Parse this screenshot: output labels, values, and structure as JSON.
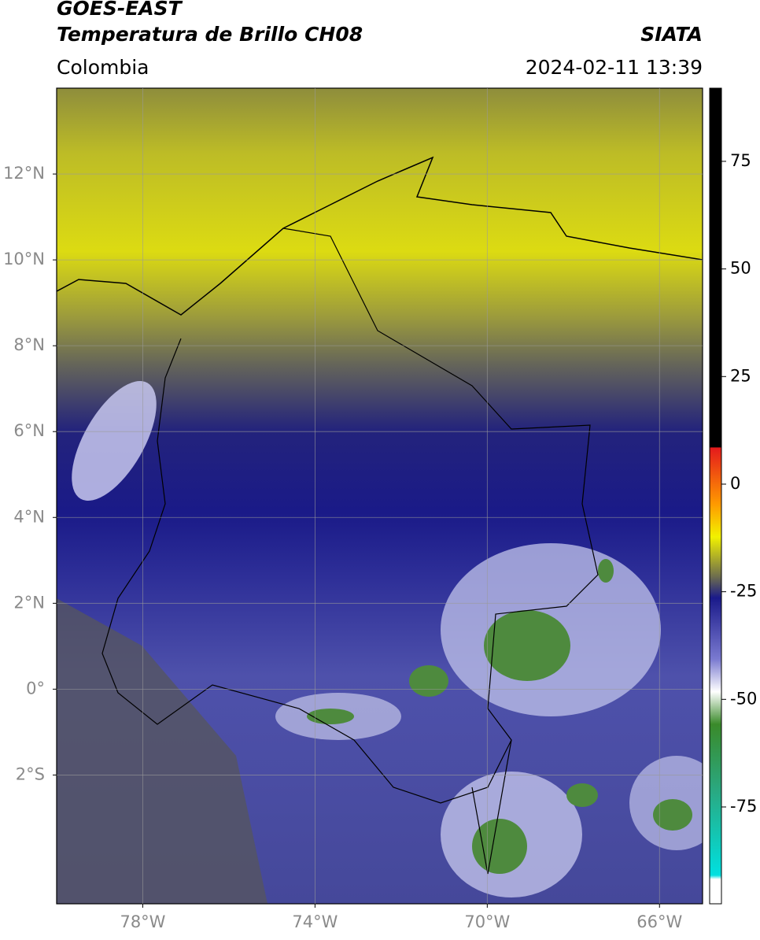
{
  "header": {
    "title_line1": "GOES-EAST",
    "title_line2": "Temperatura de Brillo CH08",
    "source": "SIATA",
    "region": "Colombia",
    "datetime": "2024-02-11 13:39"
  },
  "map": {
    "xlim": [
      -80,
      -65
    ],
    "ylim": [
      -5,
      14
    ],
    "xticks": [
      {
        "value": -78,
        "label": "78°W"
      },
      {
        "value": -74,
        "label": "74°W"
      },
      {
        "value": -70,
        "label": "70°W"
      },
      {
        "value": -66,
        "label": "66°W"
      }
    ],
    "yticks": [
      {
        "value": 12,
        "label": "12°N"
      },
      {
        "value": 10,
        "label": "10°N"
      },
      {
        "value": 8,
        "label": "8°N"
      },
      {
        "value": 6,
        "label": "6°N"
      },
      {
        "value": 4,
        "label": "4°N"
      },
      {
        "value": 2,
        "label": "2°N"
      },
      {
        "value": 0,
        "label": "0°"
      },
      {
        "value": -2,
        "label": "2°S"
      }
    ],
    "grid": true
  },
  "colorbar": {
    "ylim": [
      -97.5,
      92
    ],
    "yticks": [
      75,
      50,
      25,
      0,
      -25,
      -50,
      -75
    ]
  }
}
